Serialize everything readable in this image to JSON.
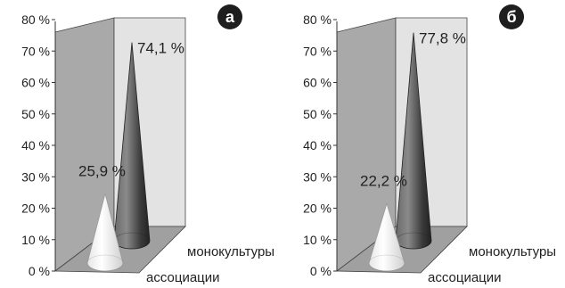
{
  "chart_data": [
    {
      "type": "3d-cone",
      "panel_label": "а",
      "categories": [
        "монокультуры",
        "ассоциации"
      ],
      "values": [
        74.1,
        25.9
      ],
      "value_labels": [
        "74,1 %",
        "25,9 %"
      ],
      "ylim": [
        0,
        80
      ],
      "yticks": [
        0,
        10,
        20,
        30,
        40,
        50,
        60,
        70,
        80
      ],
      "ytick_labels": [
        "0 %",
        "10 %",
        "20 %",
        "30 %",
        "40 %",
        "50 %",
        "60 %",
        "70 %",
        "80 %"
      ],
      "colors": [
        "#4a4a4a",
        "#f2f2f2"
      ]
    },
    {
      "type": "3d-cone",
      "panel_label": "б",
      "categories": [
        "монокультуры",
        "ассоциации"
      ],
      "values": [
        77.8,
        22.2
      ],
      "value_labels": [
        "77,8 %",
        "22,2 %"
      ],
      "ylim": [
        0,
        80
      ],
      "yticks": [
        0,
        10,
        20,
        30,
        40,
        50,
        60,
        70,
        80
      ],
      "ytick_labels": [
        "0 %",
        "10 %",
        "20 %",
        "30 %",
        "40 %",
        "50 %",
        "60 %",
        "70 %",
        "80 %"
      ],
      "colors": [
        "#4a4a4a",
        "#f2f2f2"
      ]
    }
  ]
}
